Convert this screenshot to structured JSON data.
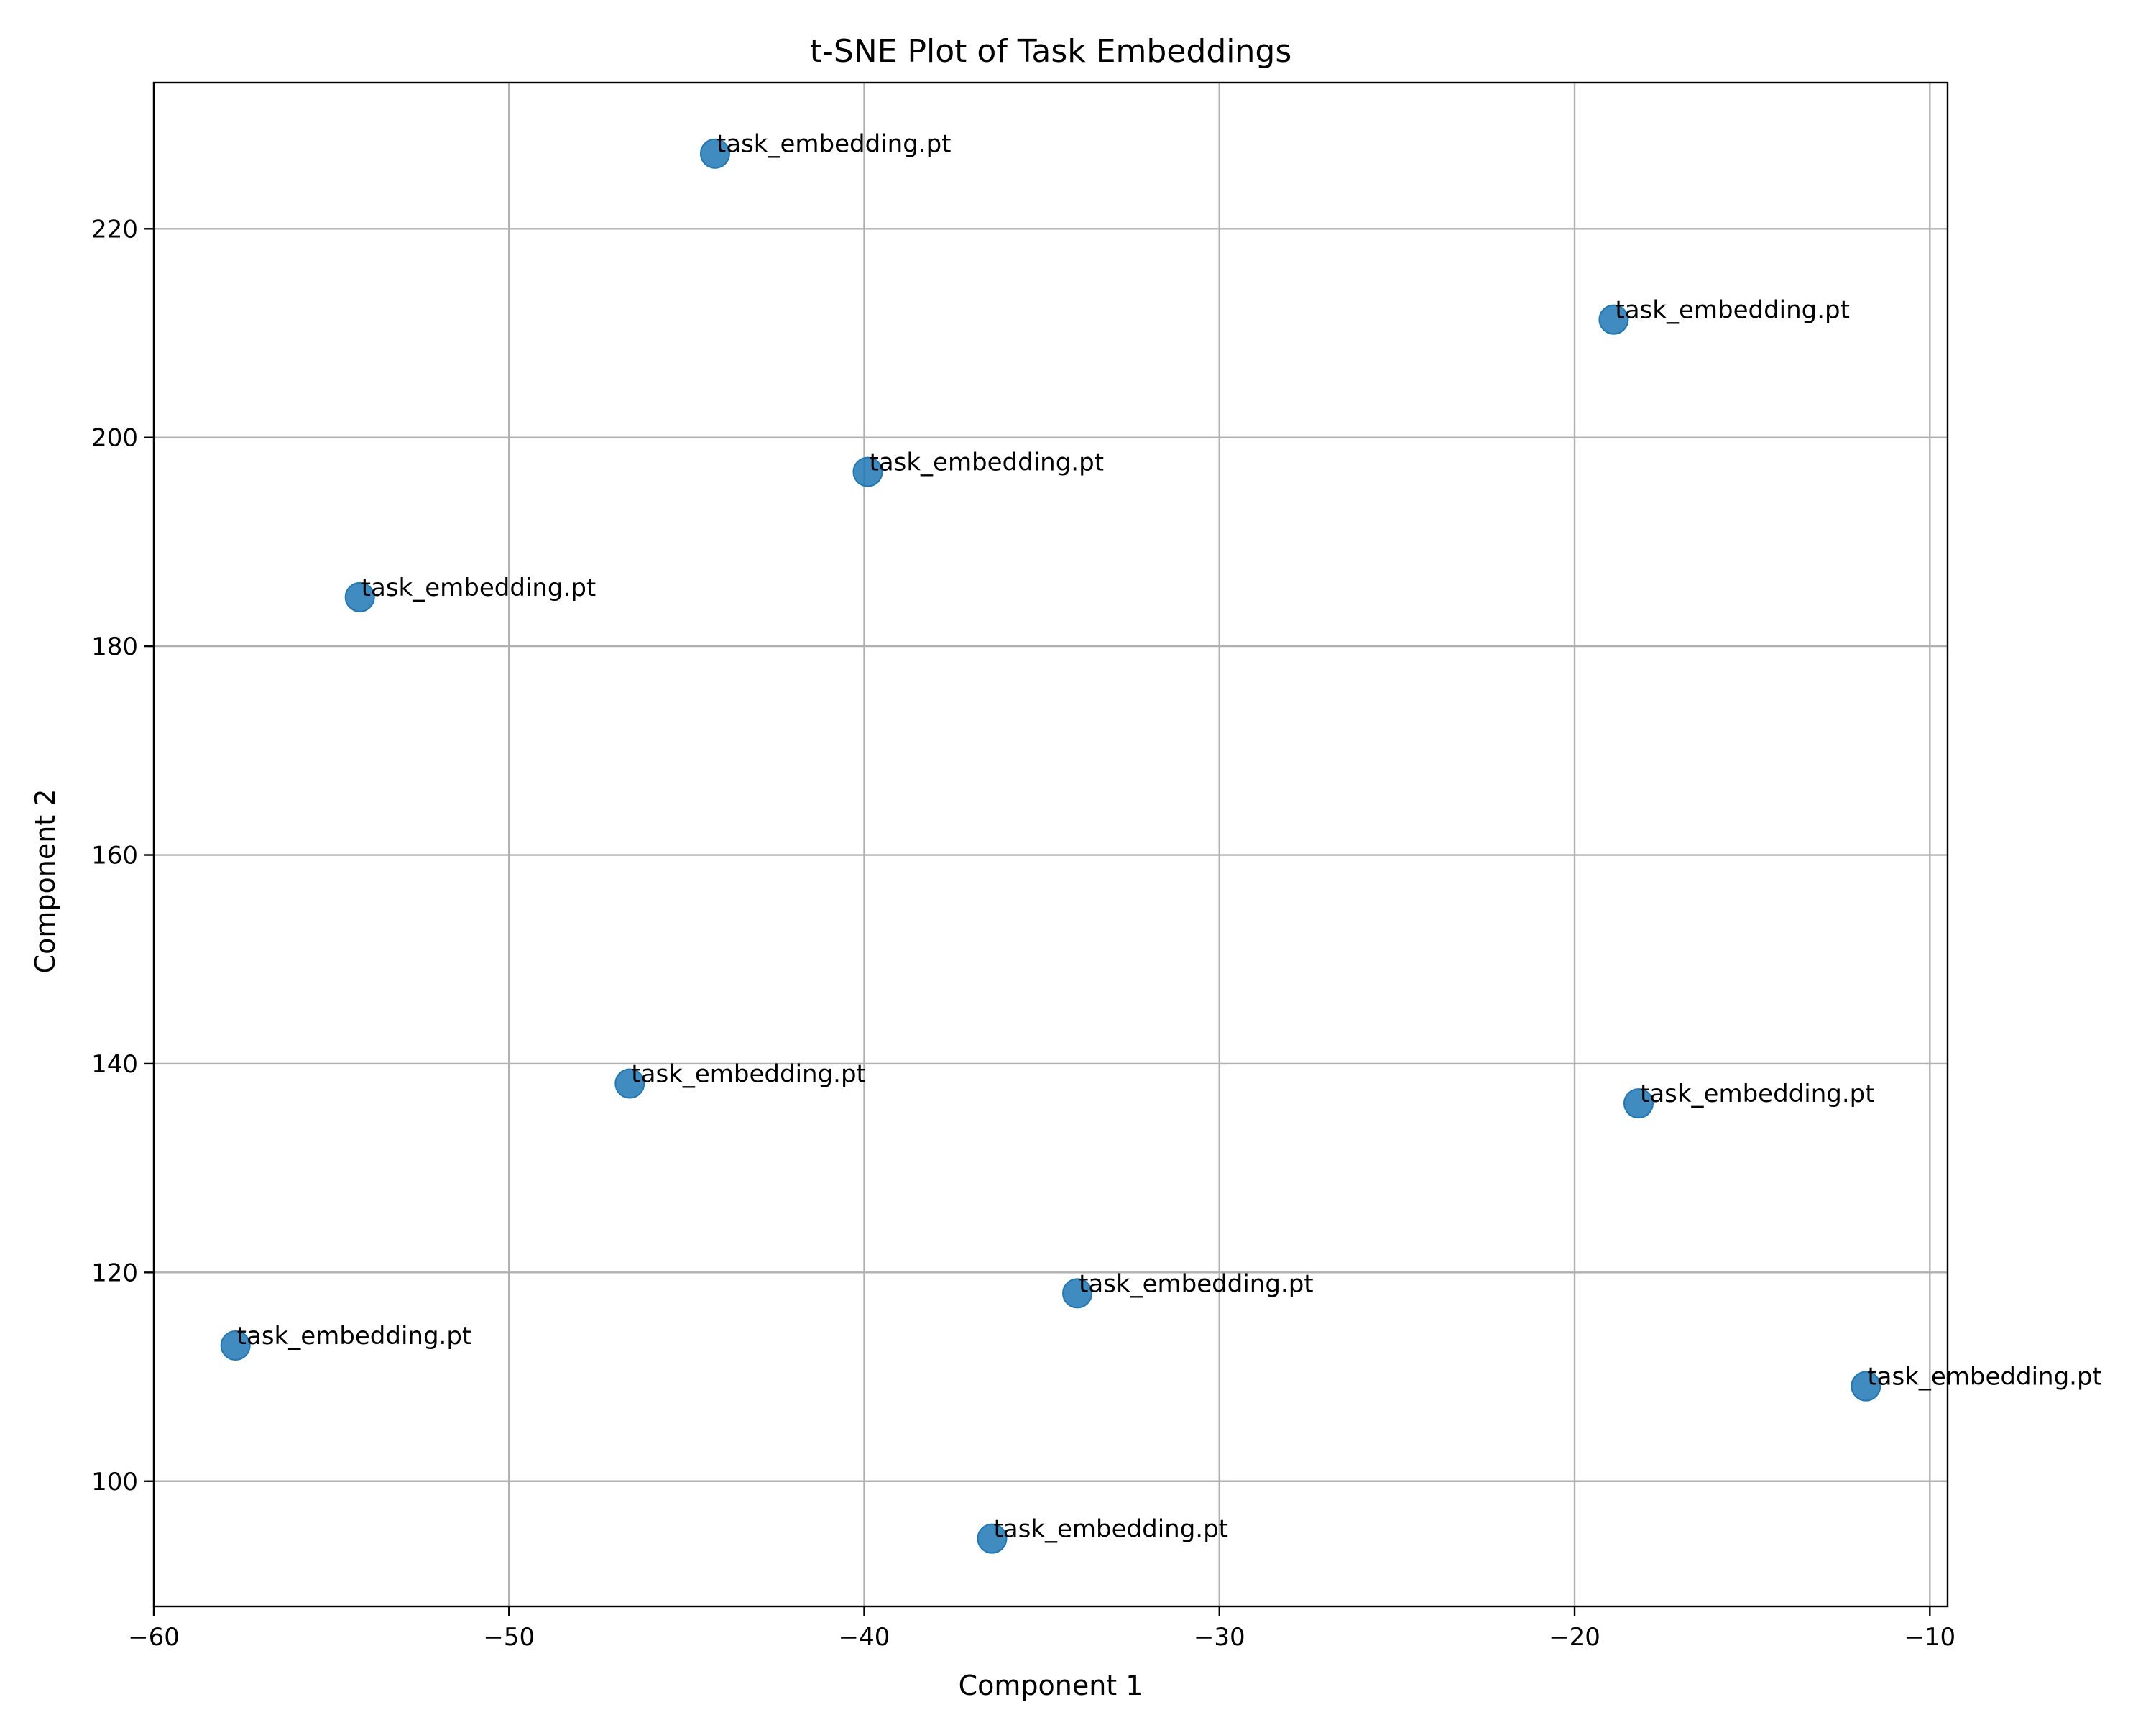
{
  "chart_data": {
    "type": "scatter",
    "title": "t-SNE Plot of Task Embeddings",
    "xlabel": "Component 1",
    "ylabel": "Component 2",
    "xlim": [
      -60,
      -9.5
    ],
    "ylim": [
      88,
      234
    ],
    "xticks": [
      -60,
      -50,
      -40,
      -30,
      -20,
      -10
    ],
    "xtick_labels": [
      "−60",
      "−50",
      "−40",
      "−30",
      "−20",
      "−10"
    ],
    "yticks": [
      100,
      120,
      140,
      160,
      180,
      200,
      220
    ],
    "ytick_labels": [
      "100",
      "120",
      "140",
      "160",
      "180",
      "200",
      "220"
    ],
    "grid": true,
    "marker_color": "#1f77b4",
    "points": [
      {
        "x": -44.2,
        "y": 227.2,
        "label": "task_embedding.pt"
      },
      {
        "x": -18.9,
        "y": 211.3,
        "label": "task_embedding.pt"
      },
      {
        "x": -39.9,
        "y": 196.7,
        "label": "task_embedding.pt"
      },
      {
        "x": -54.2,
        "y": 184.7,
        "label": "task_embedding.pt"
      },
      {
        "x": -46.6,
        "y": 138.1,
        "label": "task_embedding.pt"
      },
      {
        "x": -18.2,
        "y": 136.2,
        "label": "task_embedding.pt"
      },
      {
        "x": -34.0,
        "y": 118.0,
        "label": "task_embedding.pt"
      },
      {
        "x": -57.7,
        "y": 113.0,
        "label": "task_embedding.pt"
      },
      {
        "x": -11.8,
        "y": 109.1,
        "label": "task_embedding.pt"
      },
      {
        "x": -36.4,
        "y": 94.5,
        "label": "task_embedding.pt"
      }
    ]
  }
}
